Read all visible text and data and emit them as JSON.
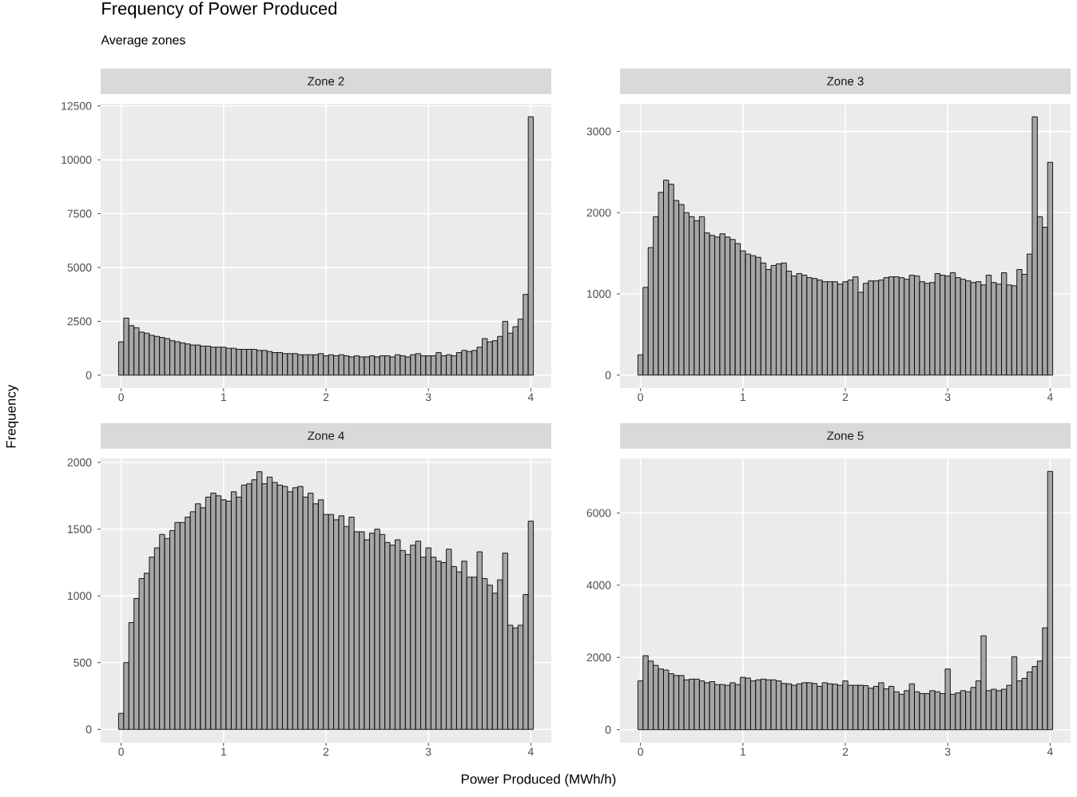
{
  "chart_data": [
    {
      "type": "histogram",
      "title": "Zone 2",
      "ylabel": "Frequency",
      "annotations": [
        "Frequency of Power Produced",
        "Average zones"
      ],
      "color": "#a6a6a6",
      "grid": true,
      "xlim": [
        -0.2,
        4.2
      ],
      "ylim": [
        -600,
        12600
      ],
      "xticks": [
        0,
        1,
        2,
        3,
        4
      ],
      "yticks": [
        0,
        2500,
        5000,
        7500,
        10000,
        12500
      ],
      "bins": [
        -0.025,
        0.025,
        0.075,
        0.125,
        0.175,
        0.225,
        0.275,
        0.325,
        0.375,
        0.425,
        0.475,
        0.525,
        0.575,
        0.625,
        0.675,
        0.725,
        0.775,
        0.825,
        0.875,
        0.925,
        0.975,
        1.025,
        1.075,
        1.125,
        1.175,
        1.225,
        1.275,
        1.325,
        1.375,
        1.425,
        1.475,
        1.525,
        1.575,
        1.625,
        1.675,
        1.725,
        1.775,
        1.825,
        1.875,
        1.925,
        1.975,
        2.025,
        2.075,
        2.125,
        2.175,
        2.225,
        2.275,
        2.325,
        2.375,
        2.425,
        2.475,
        2.525,
        2.575,
        2.625,
        2.675,
        2.725,
        2.775,
        2.825,
        2.875,
        2.925,
        2.975,
        3.025,
        3.075,
        3.125,
        3.175,
        3.225,
        3.275,
        3.325,
        3.375,
        3.425,
        3.475,
        3.525,
        3.575,
        3.625,
        3.675,
        3.725,
        3.775,
        3.825,
        3.875,
        3.925,
        3.975,
        4.025
      ],
      "values": [
        1550,
        2650,
        2300,
        2200,
        2000,
        1950,
        1850,
        1800,
        1750,
        1700,
        1600,
        1550,
        1500,
        1450,
        1400,
        1400,
        1350,
        1350,
        1300,
        1300,
        1300,
        1250,
        1250,
        1200,
        1200,
        1200,
        1200,
        1150,
        1150,
        1100,
        1050,
        1050,
        1000,
        1000,
        1000,
        950,
        950,
        950,
        950,
        1000,
        900,
        950,
        900,
        950,
        900,
        850,
        900,
        850,
        850,
        900,
        850,
        900,
        900,
        850,
        950,
        900,
        850,
        950,
        1000,
        900,
        900,
        900,
        1050,
        900,
        950,
        900,
        1050,
        1150,
        1100,
        1150,
        1300,
        1700,
        1550,
        1600,
        1800,
        2500,
        1950,
        2250,
        2600,
        3750,
        12000
      ]
    },
    {
      "type": "histogram",
      "title": "Zone 3",
      "color": "#a6a6a6",
      "grid": true,
      "xlim": [
        -0.2,
        4.2
      ],
      "ylim": [
        -160,
        3340
      ],
      "xticks": [
        0,
        1,
        2,
        3,
        4
      ],
      "yticks": [
        0,
        1000,
        2000,
        3000
      ],
      "bins": [
        -0.025,
        0.025,
        0.075,
        0.125,
        0.175,
        0.225,
        0.275,
        0.325,
        0.375,
        0.425,
        0.475,
        0.525,
        0.575,
        0.625,
        0.675,
        0.725,
        0.775,
        0.825,
        0.875,
        0.925,
        0.975,
        1.025,
        1.075,
        1.125,
        1.175,
        1.225,
        1.275,
        1.325,
        1.375,
        1.425,
        1.475,
        1.525,
        1.575,
        1.625,
        1.675,
        1.725,
        1.775,
        1.825,
        1.875,
        1.925,
        1.975,
        2.025,
        2.075,
        2.125,
        2.175,
        2.225,
        2.275,
        2.325,
        2.375,
        2.425,
        2.475,
        2.525,
        2.575,
        2.625,
        2.675,
        2.725,
        2.775,
        2.825,
        2.875,
        2.925,
        2.975,
        3.025,
        3.075,
        3.125,
        3.175,
        3.225,
        3.275,
        3.325,
        3.375,
        3.425,
        3.475,
        3.525,
        3.575,
        3.625,
        3.675,
        3.725,
        3.775,
        3.825,
        3.875,
        3.925,
        3.975,
        4.025
      ],
      "values": [
        250,
        1080,
        1570,
        1950,
        2250,
        2400,
        2350,
        2150,
        2100,
        2000,
        1950,
        1900,
        1950,
        1750,
        1720,
        1700,
        1740,
        1700,
        1670,
        1620,
        1530,
        1490,
        1470,
        1450,
        1380,
        1300,
        1350,
        1370,
        1380,
        1280,
        1220,
        1250,
        1230,
        1200,
        1190,
        1170,
        1150,
        1150,
        1150,
        1120,
        1150,
        1170,
        1210,
        1020,
        1130,
        1160,
        1160,
        1170,
        1200,
        1210,
        1210,
        1200,
        1180,
        1230,
        1220,
        1150,
        1130,
        1140,
        1250,
        1230,
        1220,
        1260,
        1200,
        1180,
        1160,
        1140,
        1150,
        1110,
        1230,
        1140,
        1120,
        1260,
        1110,
        1100,
        1300,
        1240,
        1490,
        3180,
        1950,
        1820,
        2620
      ]
    },
    {
      "type": "histogram",
      "title": "Zone 4",
      "xlabel": "Power Produced (MWh/h)",
      "color": "#a6a6a6",
      "grid": true,
      "xlim": [
        -0.2,
        4.2
      ],
      "ylim": [
        -100,
        2030
      ],
      "xticks": [
        0,
        1,
        2,
        3,
        4
      ],
      "yticks": [
        0,
        500,
        1000,
        1500,
        2000
      ],
      "bins": [
        -0.025,
        0.025,
        0.075,
        0.125,
        0.175,
        0.225,
        0.275,
        0.325,
        0.375,
        0.425,
        0.475,
        0.525,
        0.575,
        0.625,
        0.675,
        0.725,
        0.775,
        0.825,
        0.875,
        0.925,
        0.975,
        1.025,
        1.075,
        1.125,
        1.175,
        1.225,
        1.275,
        1.325,
        1.375,
        1.425,
        1.475,
        1.525,
        1.575,
        1.625,
        1.675,
        1.725,
        1.775,
        1.825,
        1.875,
        1.925,
        1.975,
        2.025,
        2.075,
        2.125,
        2.175,
        2.225,
        2.275,
        2.325,
        2.375,
        2.425,
        2.475,
        2.525,
        2.575,
        2.625,
        2.675,
        2.725,
        2.775,
        2.825,
        2.875,
        2.925,
        2.975,
        3.025,
        3.075,
        3.125,
        3.175,
        3.225,
        3.275,
        3.325,
        3.375,
        3.425,
        3.475,
        3.525,
        3.575,
        3.625,
        3.675,
        3.725,
        3.775,
        3.825,
        3.875,
        3.925,
        3.975,
        4.025
      ],
      "values": [
        120,
        500,
        800,
        980,
        1130,
        1170,
        1290,
        1360,
        1460,
        1430,
        1490,
        1550,
        1550,
        1590,
        1630,
        1690,
        1660,
        1740,
        1770,
        1750,
        1720,
        1710,
        1780,
        1740,
        1830,
        1840,
        1870,
        1930,
        1840,
        1890,
        1850,
        1830,
        1820,
        1780,
        1810,
        1820,
        1740,
        1770,
        1690,
        1720,
        1610,
        1610,
        1570,
        1600,
        1520,
        1590,
        1480,
        1480,
        1420,
        1470,
        1500,
        1460,
        1400,
        1380,
        1420,
        1340,
        1310,
        1380,
        1410,
        1290,
        1360,
        1290,
        1260,
        1250,
        1350,
        1220,
        1180,
        1260,
        1140,
        1140,
        1330,
        1130,
        1080,
        1020,
        1120,
        1320,
        780,
        760,
        780,
        1010,
        1560
      ]
    },
    {
      "type": "histogram",
      "title": "Zone 5",
      "color": "#a6a6a6",
      "grid": true,
      "xlim": [
        -0.2,
        4.2
      ],
      "ylim": [
        -360,
        7510
      ],
      "xticks": [
        0,
        1,
        2,
        3,
        4
      ],
      "yticks": [
        0,
        2000,
        4000,
        6000
      ],
      "bins": [
        -0.025,
        0.025,
        0.075,
        0.125,
        0.175,
        0.225,
        0.275,
        0.325,
        0.375,
        0.425,
        0.475,
        0.525,
        0.575,
        0.625,
        0.675,
        0.725,
        0.775,
        0.825,
        0.875,
        0.925,
        0.975,
        1.025,
        1.075,
        1.125,
        1.175,
        1.225,
        1.275,
        1.325,
        1.375,
        1.425,
        1.475,
        1.525,
        1.575,
        1.625,
        1.675,
        1.725,
        1.775,
        1.825,
        1.875,
        1.925,
        1.975,
        2.025,
        2.075,
        2.125,
        2.175,
        2.225,
        2.275,
        2.325,
        2.375,
        2.425,
        2.475,
        2.525,
        2.575,
        2.625,
        2.675,
        2.725,
        2.775,
        2.825,
        2.875,
        2.925,
        2.975,
        3.025,
        3.075,
        3.125,
        3.175,
        3.225,
        3.275,
        3.325,
        3.375,
        3.425,
        3.475,
        3.525,
        3.575,
        3.625,
        3.675,
        3.725,
        3.775,
        3.825,
        3.875,
        3.925,
        3.975,
        4.025
      ],
      "values": [
        1350,
        2050,
        1900,
        1780,
        1680,
        1650,
        1550,
        1500,
        1500,
        1380,
        1400,
        1400,
        1350,
        1300,
        1330,
        1250,
        1250,
        1230,
        1300,
        1250,
        1450,
        1430,
        1350,
        1380,
        1400,
        1380,
        1380,
        1350,
        1280,
        1270,
        1230,
        1270,
        1300,
        1300,
        1280,
        1200,
        1300,
        1270,
        1260,
        1230,
        1350,
        1230,
        1230,
        1230,
        1220,
        1150,
        1200,
        1300,
        1130,
        1200,
        1050,
        980,
        1080,
        1270,
        1050,
        1000,
        1000,
        1080,
        1050,
        1000,
        1680,
        980,
        1020,
        1080,
        1050,
        1170,
        1350,
        2600,
        1080,
        1120,
        1080,
        1120,
        1230,
        2020,
        1350,
        1420,
        1600,
        1750,
        1900,
        2820,
        7150
      ]
    }
  ]
}
